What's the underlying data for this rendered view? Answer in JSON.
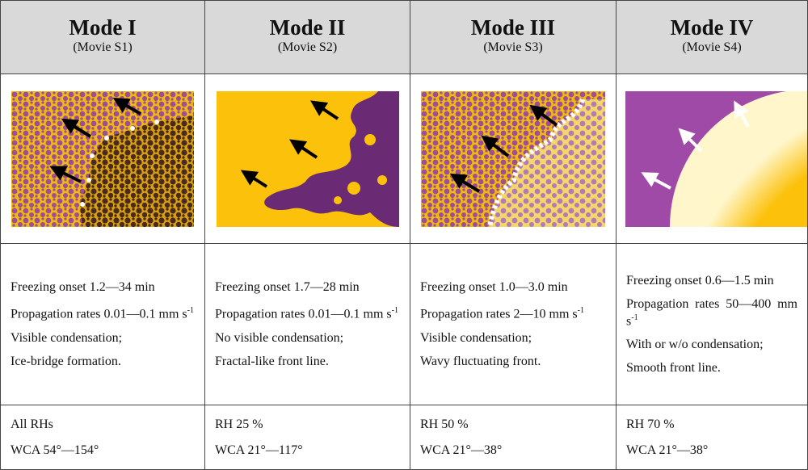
{
  "table": {
    "columns": [
      {
        "mode": "Mode I",
        "movie": "(Movie S1)",
        "notes": [
          "Freezing onset 1.2—34 min",
          {
            "text": "Propagation rates 0.01—0.1 mm s",
            "sup": "-1"
          },
          "Visible condensation;",
          "Ice-bridge formation."
        ],
        "conditions": [
          "All RHs",
          "WCA 54°—154°"
        ]
      },
      {
        "mode": "Mode II",
        "movie": "(Movie S2)",
        "notes": [
          "Freezing onset 1.7—28 min",
          {
            "text": "Propagation rates 0.01—0.1 mm s",
            "sup": "-1"
          },
          "No visible condensation;",
          "Fractal-like front line."
        ],
        "conditions": [
          "RH 25 %",
          "WCA 21°—117°"
        ]
      },
      {
        "mode": "Mode III",
        "movie": "(Movie S3)",
        "notes": [
          "Freezing onset 1.0—3.0 min",
          {
            "text": "Propagation rates 2—10 mm s",
            "sup": "-1"
          },
          "Visible condensation;",
          "Wavy fluctuating front."
        ],
        "conditions": [
          "RH 50 %",
          "WCA 21°—38°"
        ]
      },
      {
        "mode": "Mode IV",
        "movie": "(Movie S4)",
        "notes": [
          "Freezing onset 0.6—1.5 min",
          {
            "text": "Propagation rates 50—400 mm s",
            "sup": "-1"
          },
          "With or w/o condensation;",
          "Smooth front line."
        ],
        "conditions": [
          "RH 70 %",
          "WCA 21°—38°"
        ]
      }
    ]
  }
}
